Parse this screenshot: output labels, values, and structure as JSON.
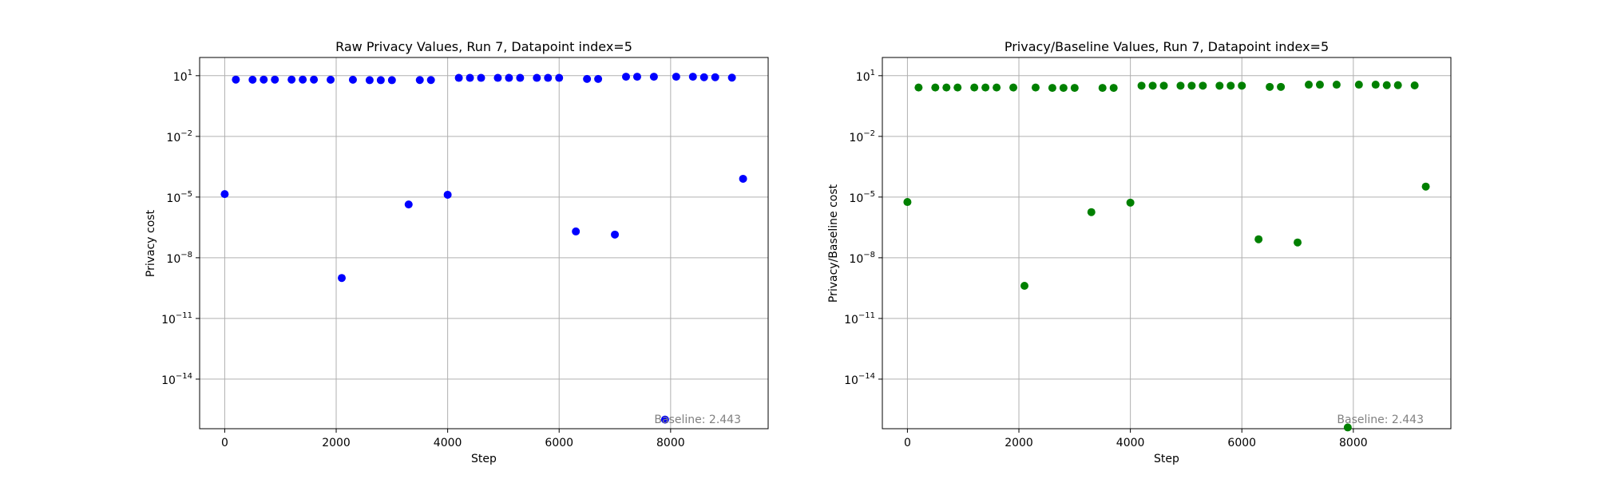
{
  "chart_data": [
    {
      "type": "scatter",
      "title": "Raw Privacy Values, Run 7, Datapoint index=5",
      "xlabel": "Step",
      "ylabel": "Privacy cost",
      "yscale": "log",
      "xlim": [
        -450,
        9750
      ],
      "ylim": [
        -16.45,
        1.9
      ],
      "xticks": [
        0,
        2000,
        4000,
        6000,
        8000
      ],
      "xtick_labels": [
        "0",
        "2000",
        "4000",
        "6000",
        "8000"
      ],
      "yticks": [
        1,
        -2,
        -5,
        -8,
        -11,
        -14
      ],
      "ytick_labels": [
        "10^1",
        "10^-2",
        "10^-5",
        "10^-8",
        "10^-11",
        "10^-14"
      ],
      "grid": true,
      "color": "#0000ff",
      "annotation": "Baseline: 2.443",
      "x": [
        0,
        200,
        500,
        700,
        900,
        1200,
        1400,
        1600,
        1900,
        2100,
        2300,
        2600,
        2800,
        3000,
        3300,
        3500,
        3700,
        4000,
        4200,
        4400,
        4600,
        4900,
        5100,
        5300,
        5600,
        5800,
        6000,
        6300,
        6500,
        6700,
        7000,
        7200,
        7400,
        7700,
        7900,
        8100,
        8400,
        8600,
        8800,
        9100,
        9300
      ],
      "y": [
        1.4e-05,
        6.4,
        6.3,
        6.4,
        6.4,
        6.4,
        6.4,
        6.4,
        6.3,
        1e-09,
        6.3,
        6.0,
        6.0,
        6.0,
        4.3e-06,
        6.1,
        6.1,
        1.3e-05,
        7.8,
        7.8,
        7.8,
        7.8,
        7.8,
        7.8,
        7.8,
        7.8,
        7.8,
        2e-07,
        6.9,
        6.9,
        1.4e-07,
        8.9,
        8.9,
        8.9,
        1e-16,
        8.9,
        8.9,
        8.4,
        8.4,
        8.0,
        8e-05
      ]
    },
    {
      "type": "scatter",
      "title": "Privacy/Baseline Values, Run 7, Datapoint index=5",
      "xlabel": "Step",
      "ylabel": "Privacy/Baseline cost",
      "yscale": "log",
      "xlim": [
        -450,
        9750
      ],
      "ylim": [
        -16.45,
        1.9
      ],
      "xticks": [
        0,
        2000,
        4000,
        6000,
        8000
      ],
      "xtick_labels": [
        "0",
        "2000",
        "4000",
        "6000",
        "8000"
      ],
      "yticks": [
        1,
        -2,
        -5,
        -8,
        -11,
        -14
      ],
      "ytick_labels": [
        "10^1",
        "10^-2",
        "10^-5",
        "10^-8",
        "10^-11",
        "10^-14"
      ],
      "grid": true,
      "color": "#008000",
      "annotation": "Baseline: 2.443",
      "x": [
        0,
        200,
        500,
        700,
        900,
        1200,
        1400,
        1600,
        1900,
        2100,
        2300,
        2600,
        2800,
        3000,
        3300,
        3500,
        3700,
        4000,
        4200,
        4400,
        4600,
        4900,
        5100,
        5300,
        5600,
        5800,
        6000,
        6300,
        6500,
        6700,
        7000,
        7200,
        7400,
        7700,
        7900,
        8100,
        8400,
        8600,
        8800,
        9100,
        9300
      ],
      "y": [
        5.7e-06,
        2.6,
        2.6,
        2.6,
        2.6,
        2.6,
        2.6,
        2.6,
        2.6,
        4.1e-10,
        2.6,
        2.5,
        2.5,
        2.5,
        1.8e-06,
        2.5,
        2.5,
        5.3e-06,
        3.2,
        3.2,
        3.2,
        3.2,
        3.2,
        3.2,
        3.2,
        3.2,
        3.2,
        8.2e-08,
        2.8,
        2.8,
        5.7e-08,
        3.6,
        3.6,
        3.6,
        4.1e-17,
        3.6,
        3.6,
        3.4,
        3.4,
        3.3,
        3.3e-05
      ]
    }
  ]
}
